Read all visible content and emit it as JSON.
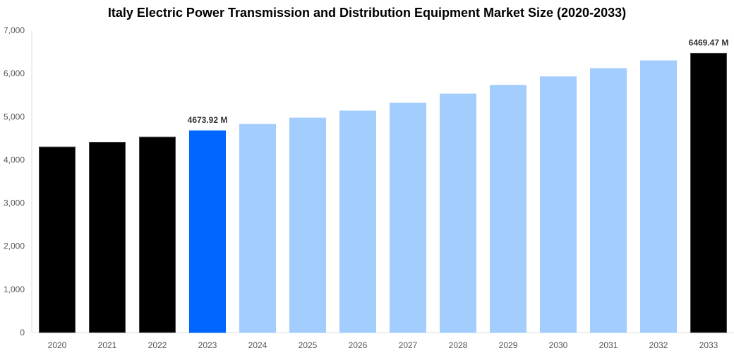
{
  "chart_data": {
    "type": "bar",
    "title": "Italy Electric Power Transmission and Distribution Equipment Market Size (2020-2033)",
    "xlabel": "",
    "ylabel": "",
    "ylim": [
      0,
      7000
    ],
    "yticks": [
      "0",
      "1,000",
      "2,000",
      "3,000",
      "4,000",
      "5,000",
      "6,000",
      "7,000"
    ],
    "grid": false,
    "categories": [
      "2020",
      "2021",
      "2022",
      "2023",
      "2024",
      "2025",
      "2026",
      "2027",
      "2028",
      "2029",
      "2030",
      "2031",
      "2032",
      "2033"
    ],
    "values": [
      4299,
      4408,
      4528,
      4673.92,
      4823,
      4970,
      5134,
      5314,
      5526,
      5728,
      5925,
      6116,
      6296,
      6469.47
    ],
    "colors": [
      "#000000",
      "#000000",
      "#000000",
      "#0066ff",
      "#a3cdfd",
      "#a3cdfd",
      "#a3cdfd",
      "#a3cdfd",
      "#a3cdfd",
      "#a3cdfd",
      "#a3cdfd",
      "#a3cdfd",
      "#a3cdfd",
      "#000000"
    ],
    "data_labels": {
      "3": "4673.92 M",
      "13": "6469.47 M"
    }
  }
}
